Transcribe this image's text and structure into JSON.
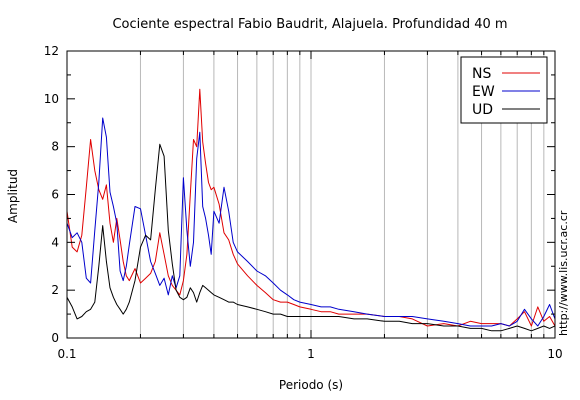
{
  "chart_data": {
    "type": "line",
    "title": "Cociente espectral Fabio Baudrit, Alajuela. Profundidad 40 m",
    "xlabel": "Periodo (s)",
    "ylabel": "Amplitud",
    "xscale": "log",
    "xlim": [
      0.1,
      10
    ],
    "ylim": [
      0,
      12
    ],
    "xticks": [
      0.1,
      1,
      10
    ],
    "xtick_labels": [
      "0.1",
      "1",
      "10"
    ],
    "yticks": [
      0,
      2,
      4,
      6,
      8,
      10,
      12
    ],
    "ytick_labels": [
      "0",
      "2",
      "4",
      "6",
      "8",
      "10",
      "12"
    ],
    "grid": "x-minor-vertical",
    "legend_position": "top-right",
    "watermark": "http://www.lis.ucr.ac.cr",
    "series": [
      {
        "name": "NS",
        "color": "#e00000",
        "x": [
          0.1,
          0.105,
          0.11,
          0.115,
          0.12,
          0.125,
          0.13,
          0.135,
          0.14,
          0.145,
          0.15,
          0.155,
          0.16,
          0.165,
          0.17,
          0.175,
          0.18,
          0.19,
          0.2,
          0.21,
          0.22,
          0.23,
          0.24,
          0.25,
          0.26,
          0.27,
          0.28,
          0.29,
          0.3,
          0.31,
          0.32,
          0.33,
          0.34,
          0.35,
          0.36,
          0.37,
          0.38,
          0.39,
          0.4,
          0.42,
          0.44,
          0.46,
          0.48,
          0.5,
          0.55,
          0.6,
          0.65,
          0.7,
          0.75,
          0.8,
          0.85,
          0.9,
          1.0,
          1.1,
          1.2,
          1.3,
          1.5,
          1.7,
          2.0,
          2.3,
          2.6,
          3.0,
          3.5,
          4.0,
          4.5,
          5.0,
          5.5,
          6.0,
          6.5,
          7.0,
          7.5,
          8.0,
          8.5,
          9.0,
          9.5,
          10.0
        ],
        "values": [
          5.3,
          3.8,
          3.6,
          4.3,
          6.3,
          8.3,
          7.0,
          6.2,
          5.8,
          6.4,
          4.8,
          4.0,
          5.0,
          4.1,
          3.2,
          2.6,
          2.4,
          2.9,
          2.3,
          2.5,
          2.7,
          3.2,
          4.4,
          3.5,
          2.6,
          2.2,
          2.0,
          1.8,
          2.4,
          3.5,
          6.0,
          8.3,
          8.0,
          10.4,
          8.2,
          7.3,
          6.5,
          6.2,
          6.3,
          5.6,
          4.4,
          4.1,
          3.5,
          3.1,
          2.6,
          2.2,
          1.9,
          1.6,
          1.5,
          1.5,
          1.4,
          1.3,
          1.2,
          1.1,
          1.1,
          1.0,
          1.0,
          1.0,
          0.9,
          0.9,
          0.8,
          0.5,
          0.6,
          0.5,
          0.7,
          0.6,
          0.6,
          0.6,
          0.5,
          0.8,
          1.1,
          0.5,
          1.3,
          0.7,
          0.9,
          0.5
        ]
      },
      {
        "name": "EW",
        "color": "#0000cc",
        "x": [
          0.1,
          0.105,
          0.11,
          0.115,
          0.12,
          0.125,
          0.13,
          0.135,
          0.14,
          0.145,
          0.15,
          0.155,
          0.16,
          0.165,
          0.17,
          0.175,
          0.18,
          0.19,
          0.2,
          0.21,
          0.22,
          0.23,
          0.24,
          0.25,
          0.26,
          0.27,
          0.28,
          0.29,
          0.3,
          0.31,
          0.32,
          0.33,
          0.34,
          0.35,
          0.36,
          0.37,
          0.38,
          0.39,
          0.4,
          0.42,
          0.44,
          0.46,
          0.48,
          0.5,
          0.55,
          0.6,
          0.65,
          0.7,
          0.75,
          0.8,
          0.85,
          0.9,
          1.0,
          1.1,
          1.2,
          1.3,
          1.5,
          1.7,
          2.0,
          2.3,
          2.6,
          3.0,
          3.5,
          4.0,
          4.5,
          5.0,
          5.5,
          6.0,
          6.5,
          7.0,
          7.5,
          8.0,
          8.5,
          9.0,
          9.5,
          10.0
        ],
        "values": [
          4.8,
          4.2,
          4.4,
          4.0,
          2.5,
          2.3,
          4.5,
          6.5,
          9.2,
          8.4,
          6.1,
          5.5,
          4.8,
          2.8,
          2.4,
          3.0,
          3.9,
          5.5,
          5.4,
          4.3,
          3.2,
          2.7,
          2.2,
          2.5,
          1.8,
          2.6,
          2.1,
          2.6,
          6.7,
          4.5,
          3.0,
          4.0,
          7.5,
          8.6,
          5.5,
          5.0,
          4.3,
          3.5,
          5.3,
          4.8,
          6.3,
          5.3,
          4.0,
          3.6,
          3.2,
          2.8,
          2.6,
          2.3,
          2.0,
          1.8,
          1.6,
          1.5,
          1.4,
          1.3,
          1.3,
          1.2,
          1.1,
          1.0,
          0.9,
          0.9,
          0.9,
          0.8,
          0.7,
          0.6,
          0.5,
          0.5,
          0.5,
          0.6,
          0.5,
          0.7,
          1.2,
          0.8,
          0.5,
          0.9,
          1.4,
          0.8
        ]
      },
      {
        "name": "UD",
        "color": "#000000",
        "x": [
          0.1,
          0.105,
          0.11,
          0.115,
          0.12,
          0.125,
          0.13,
          0.135,
          0.14,
          0.145,
          0.15,
          0.155,
          0.16,
          0.165,
          0.17,
          0.175,
          0.18,
          0.19,
          0.2,
          0.21,
          0.22,
          0.23,
          0.24,
          0.25,
          0.26,
          0.27,
          0.28,
          0.29,
          0.3,
          0.31,
          0.32,
          0.33,
          0.34,
          0.35,
          0.36,
          0.37,
          0.38,
          0.39,
          0.4,
          0.42,
          0.44,
          0.46,
          0.48,
          0.5,
          0.55,
          0.6,
          0.65,
          0.7,
          0.75,
          0.8,
          0.85,
          0.9,
          1.0,
          1.1,
          1.2,
          1.3,
          1.5,
          1.7,
          2.0,
          2.3,
          2.6,
          3.0,
          3.5,
          4.0,
          4.5,
          5.0,
          5.5,
          6.0,
          6.5,
          7.0,
          7.5,
          8.0,
          8.5,
          9.0,
          9.5,
          10.0
        ],
        "values": [
          1.7,
          1.3,
          0.8,
          0.9,
          1.1,
          1.2,
          1.5,
          3.0,
          4.7,
          3.2,
          2.1,
          1.7,
          1.4,
          1.2,
          1.0,
          1.2,
          1.5,
          2.4,
          3.8,
          4.3,
          4.1,
          6.2,
          8.1,
          7.6,
          4.5,
          3.1,
          2.0,
          1.7,
          1.6,
          1.7,
          2.1,
          1.9,
          1.5,
          1.9,
          2.2,
          2.1,
          2.0,
          1.9,
          1.8,
          1.7,
          1.6,
          1.5,
          1.5,
          1.4,
          1.3,
          1.2,
          1.1,
          1.0,
          1.0,
          0.9,
          0.9,
          0.9,
          0.9,
          0.9,
          0.9,
          0.9,
          0.8,
          0.8,
          0.7,
          0.7,
          0.6,
          0.6,
          0.5,
          0.5,
          0.4,
          0.4,
          0.3,
          0.3,
          0.4,
          0.5,
          0.4,
          0.3,
          0.4,
          0.5,
          0.4,
          0.5
        ]
      }
    ]
  }
}
